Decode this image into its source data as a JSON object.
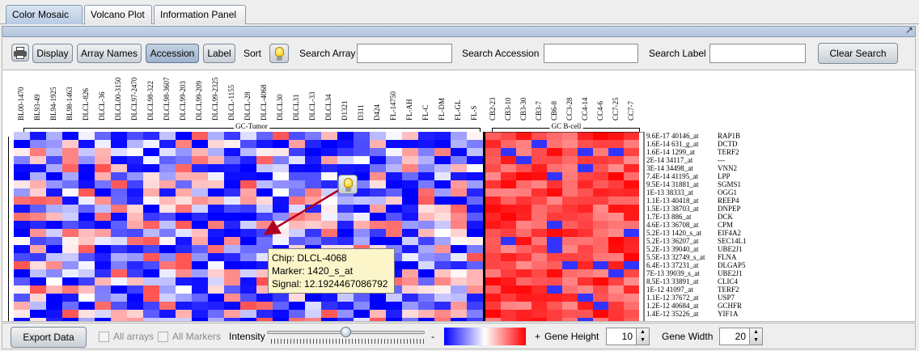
{
  "tabs": [
    {
      "label": "Color Mosaic",
      "active": true
    },
    {
      "label": "Volcano Plot",
      "active": false
    },
    {
      "label": "Information Panel",
      "active": false
    }
  ],
  "toolbar": {
    "print_icon": "printer-icon",
    "display_label": "Display",
    "array_names_label": "Array Names",
    "accession_label": "Accession",
    "label_label": "Label",
    "sort_label": "Sort",
    "sort_icon": "lightbulb-icon",
    "search_array_label": "Search Array",
    "search_array_value": "",
    "search_accession_label": "Search Accession",
    "search_accession_value": "",
    "search_label_label": "Search Label",
    "search_label_value": "",
    "clear_search_label": "Clear Search"
  },
  "mosaic": {
    "arrays": [
      "BL00-1470",
      "BL93-49",
      "BL94-1925",
      "BL98-1463",
      "DLCL-826",
      "DLCL-36",
      "DLCL00-3150",
      "DLCL97-2470",
      "DLCL98-322",
      "DLCL98-3607",
      "DLCL99-203",
      "DLCL99-209",
      "DLCL99-2325",
      "DLCL-1155",
      "DLCL-28",
      "DLCL-4068",
      "DLCL30",
      "DLCL31",
      "DLCL-33",
      "DLCL34",
      "D1321",
      "D311",
      "D424",
      "FL-14750",
      "FL-AH",
      "FL-C",
      "FL-DM",
      "FL-GL",
      "FL-S",
      "CB2-23",
      "CB3-10",
      "CB3-30",
      "CB3-7",
      "CB6-8",
      "CC3-28",
      "CC4-14",
      "CC4-6",
      "CC7-25",
      "CC7-7"
    ],
    "groups": [
      {
        "label": "GC-Tumor"
      },
      {
        "label": "GC B-cell"
      }
    ],
    "rows": [
      {
        "signal": "9.6E-17",
        "accession": "40146_at",
        "symbol": "RAP1B"
      },
      {
        "signal": "1.6E-14",
        "accession": "631_g_at",
        "symbol": "DCTD"
      },
      {
        "signal": "1.6E-14",
        "accession": "1299_at",
        "symbol": "TERF2"
      },
      {
        "signal": "2E-14",
        "accession": "34117_at",
        "symbol": "---"
      },
      {
        "signal": "3E-14",
        "accession": "34498_at",
        "symbol": "VNN2"
      },
      {
        "signal": "7.4E-14",
        "accession": "41195_at",
        "symbol": "LPP"
      },
      {
        "signal": "9.5E-14",
        "accession": "31881_at",
        "symbol": "SGMS1"
      },
      {
        "signal": "1E-13",
        "accession": "38333_at",
        "symbol": "OGG1"
      },
      {
        "signal": "1.1E-13",
        "accession": "40418_at",
        "symbol": "REEP4"
      },
      {
        "signal": "1.5E-13",
        "accession": "38703_at",
        "symbol": "DNPEP"
      },
      {
        "signal": "1.7E-13",
        "accession": "886_at",
        "symbol": "DCK"
      },
      {
        "signal": "4.6E-13",
        "accession": "36708_at",
        "symbol": "CPM"
      },
      {
        "signal": "5.2E-13",
        "accession": "1420_s_at",
        "symbol": "EIF4A2"
      },
      {
        "signal": "5.2E-13",
        "accession": "36207_at",
        "symbol": "SEC14L1"
      },
      {
        "signal": "5.2E-13",
        "accession": "39040_at",
        "symbol": "UBE2J1"
      },
      {
        "signal": "5.5E-13",
        "accession": "32749_s_at",
        "symbol": "FLNA"
      },
      {
        "signal": "6.4E-13",
        "accession": "37231_at",
        "symbol": "DLGAP5"
      },
      {
        "signal": "7E-13",
        "accession": "39039_s_at",
        "symbol": "UBE2J1"
      },
      {
        "signal": "8.5E-13",
        "accession": "33891_at",
        "symbol": "CLIC4"
      },
      {
        "signal": "1E-12",
        "accession": "41097_at",
        "symbol": "TERF2"
      },
      {
        "signal": "1.1E-12",
        "accession": "37672_at",
        "symbol": "USP7"
      },
      {
        "signal": "1.2E-12",
        "accession": "40684_at",
        "symbol": "GCHFR"
      },
      {
        "signal": "1.4E-12",
        "accession": "35226_at",
        "symbol": "YIF1A"
      }
    ],
    "colors": {
      "low": "#0000ff",
      "mid": "#ffffff",
      "high": "#ff0000"
    }
  },
  "tooltip": {
    "chip": "Chip: DLCL-4068",
    "marker": "Marker: 1420_s_at",
    "signal": "Signal: 12.1924467086792"
  },
  "bottom": {
    "export_label": "Export Data",
    "all_arrays_label": "All arrays",
    "all_markers_label": "All Markers",
    "intensity_label": "Intensity",
    "minus_label": "-",
    "plus_label": "+",
    "gene_height_label": "Gene Height",
    "gene_height_value": "10",
    "gene_width_label": "Gene Width",
    "gene_width_value": "20"
  }
}
